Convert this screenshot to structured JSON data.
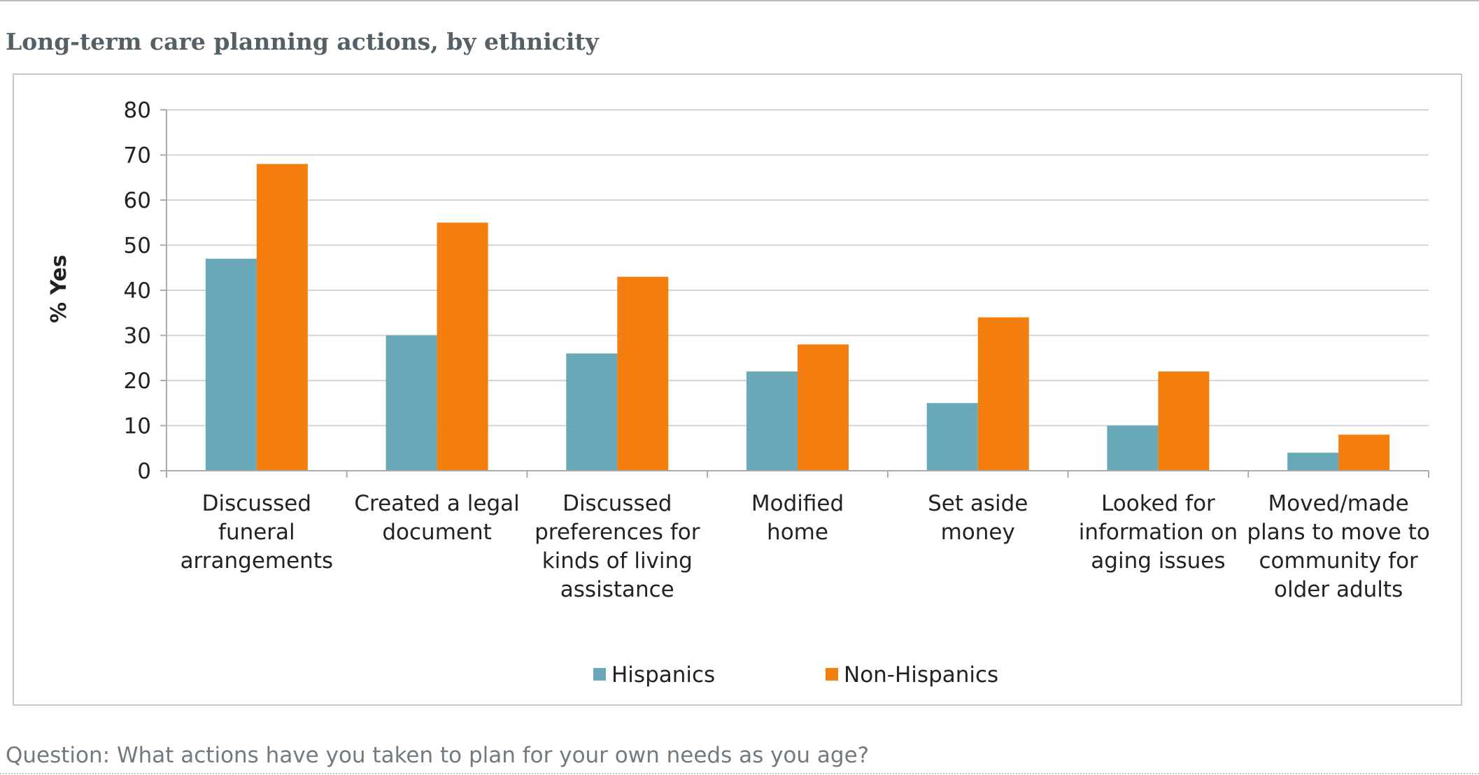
{
  "page": {
    "title": "Long-term care planning actions, by ethnicity",
    "question": "Question: What actions have you taken to plan for your own needs as you age?"
  },
  "colors": {
    "hispanics": "#68a8b9",
    "non_hispanics": "#f57f0e",
    "grid": "#d0d4d7",
    "axis": "#a8adb0",
    "text": "#222222"
  },
  "chart_data": {
    "type": "bar",
    "title": "",
    "xlabel": "",
    "ylabel": "% Yes",
    "ylim": [
      0,
      80
    ],
    "yticks": [
      0,
      10,
      20,
      30,
      40,
      50,
      60,
      70,
      80
    ],
    "grid": true,
    "legend_position": "bottom-center",
    "categories": [
      [
        "Discussed",
        "funeral",
        "arrangements"
      ],
      [
        "Created a legal",
        "document"
      ],
      [
        "Discussed",
        "preferences for",
        "kinds of living",
        "assistance"
      ],
      [
        "Modified",
        "home"
      ],
      [
        "Set aside",
        "money"
      ],
      [
        "Looked for",
        "information on",
        "aging issues"
      ],
      [
        "Moved/made",
        "plans to move to",
        "community for",
        "older adults"
      ]
    ],
    "series": [
      {
        "name": "Hispanics",
        "values": [
          47,
          30,
          26,
          22,
          15,
          10,
          4
        ]
      },
      {
        "name": "Non-Hispanics",
        "values": [
          68,
          55,
          43,
          28,
          34,
          22,
          8
        ]
      }
    ]
  }
}
